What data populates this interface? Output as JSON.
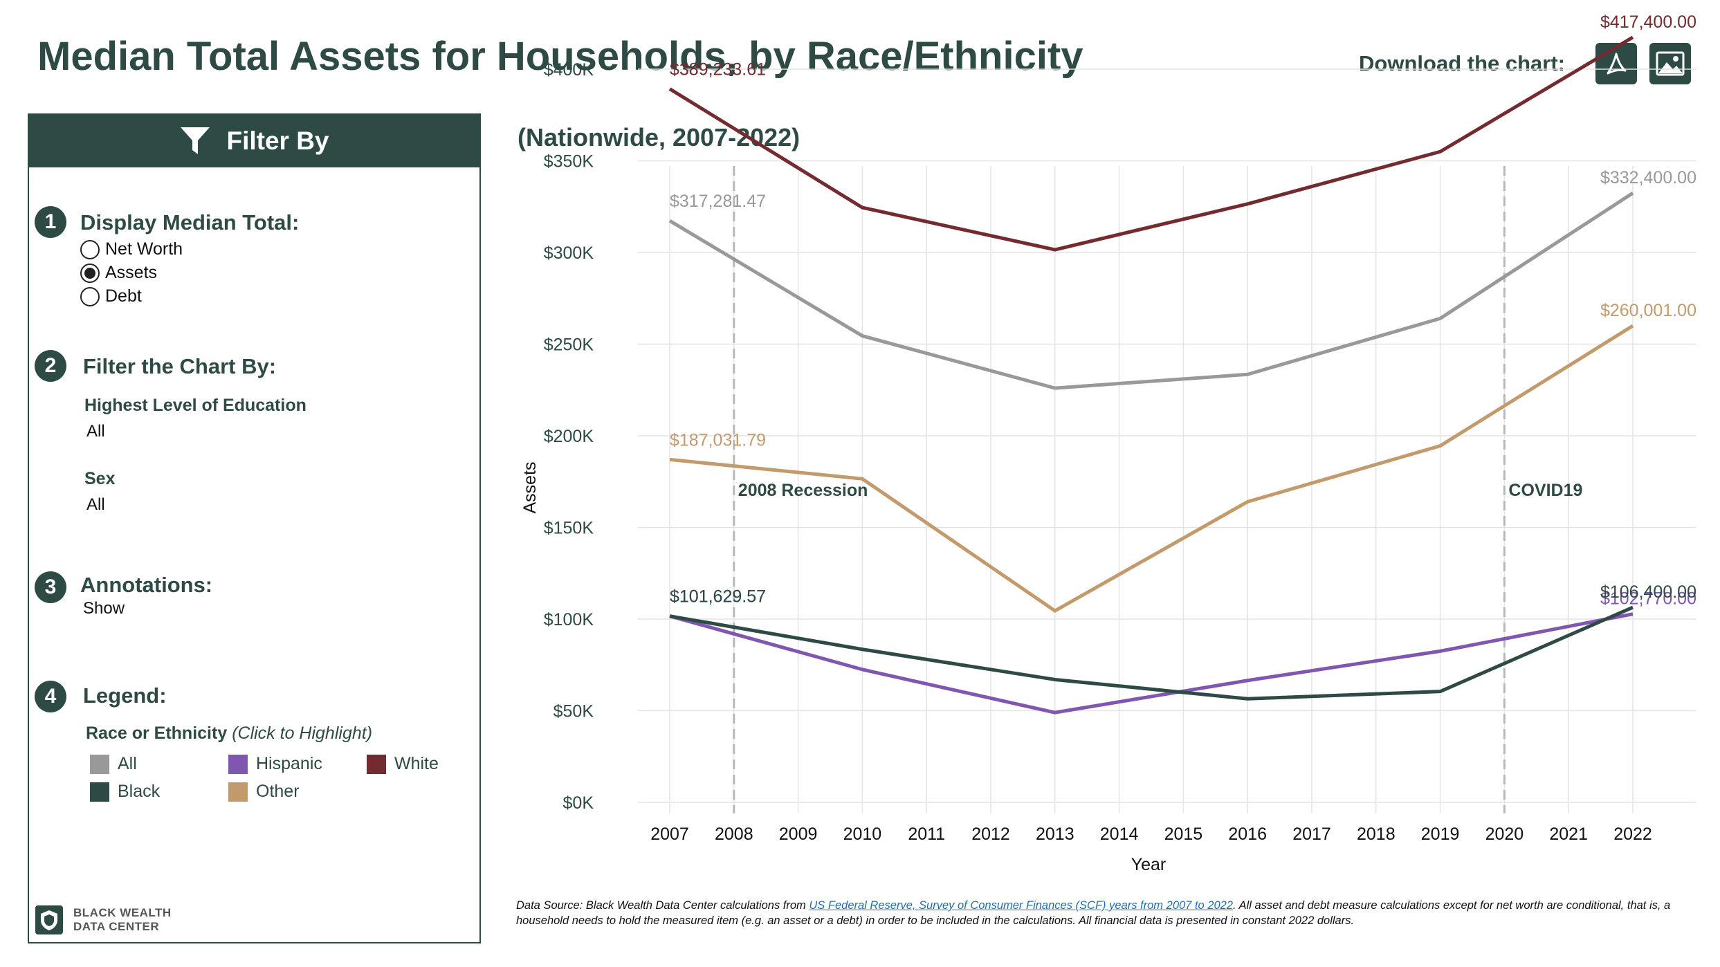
{
  "header": {
    "title": "Median Total Assets for Households, by Race/Ethnicity",
    "download_label": "Download the chart:",
    "pdf_icon": "pdf-download-icon",
    "image_icon": "image-download-icon"
  },
  "filter_panel": {
    "header_label": "Filter By",
    "header_icon": "funnel-icon",
    "sections": {
      "display": {
        "number": "1",
        "title": "Display Median Total:",
        "options": [
          "Net Worth",
          "Assets",
          "Debt"
        ],
        "selected": "Assets"
      },
      "filter": {
        "number": "2",
        "title": "Filter the Chart By:",
        "education_label": "Highest Level of Education",
        "education_value": "All",
        "sex_label": "Sex",
        "sex_value": "All"
      },
      "annotations": {
        "number": "3",
        "title": "Annotations:",
        "value": "Show"
      },
      "legend": {
        "number": "4",
        "title": "Legend:",
        "subtitle_bold": "Race or Ethnicity",
        "subtitle_italic": "(Click to Highlight)",
        "items": [
          {
            "label": "All",
            "color": "#999999"
          },
          {
            "label": "Hispanic",
            "color": "#7f56b0"
          },
          {
            "label": "White",
            "color": "#742b30"
          },
          {
            "label": "Black",
            "color": "#2e4a45"
          },
          {
            "label": "Other",
            "color": "#c39a6b"
          }
        ]
      }
    },
    "logo": {
      "line1": "BLACK WEALTH",
      "line2": "DATA CENTER"
    }
  },
  "subtitle": "(Nationwide, 2007-2022)",
  "chart_data": {
    "type": "line",
    "ylabel": "Assets",
    "xlabel": "Year",
    "x": [
      2007,
      2008,
      2009,
      2010,
      2011,
      2012,
      2013,
      2014,
      2015,
      2016,
      2017,
      2018,
      2019,
      2020,
      2021,
      2022
    ],
    "x_tick_labels": [
      "2007",
      "2008",
      "2009",
      "2010",
      "2011",
      "2012",
      "2013",
      "2014",
      "2015",
      "2016",
      "2017",
      "2018",
      "2019",
      "2020",
      "2021",
      "2022"
    ],
    "ylim": [
      0,
      425000
    ],
    "y_ticks": [
      0,
      50000,
      100000,
      150000,
      200000,
      250000,
      300000,
      350000,
      400000
    ],
    "y_tick_labels": [
      "$0K",
      "$50K",
      "$100K",
      "$150K",
      "$200K",
      "$250K",
      "$300K",
      "$350K",
      "$400K"
    ],
    "grid": true,
    "series": [
      {
        "name": "White",
        "color": "#742b30",
        "points": [
          [
            2007,
            389233.61
          ],
          [
            2010,
            324500
          ],
          [
            2013,
            301500
          ],
          [
            2016,
            326500
          ],
          [
            2019,
            355000
          ],
          [
            2022,
            417400
          ]
        ],
        "start_label": "$389,233.61",
        "end_label": "$417,400.00"
      },
      {
        "name": "All",
        "color": "#999999",
        "points": [
          [
            2007,
            317281.47
          ],
          [
            2010,
            254500
          ],
          [
            2013,
            226000
          ],
          [
            2016,
            233500
          ],
          [
            2019,
            264000
          ],
          [
            2022,
            332400
          ]
        ],
        "start_label": "$317,281.47",
        "end_label": "$332,400.00"
      },
      {
        "name": "Other",
        "color": "#c39a6b",
        "points": [
          [
            2007,
            187031.79
          ],
          [
            2010,
            176500
          ],
          [
            2013,
            104500
          ],
          [
            2016,
            164000
          ],
          [
            2019,
            194500
          ],
          [
            2022,
            260001
          ]
        ],
        "start_label": "$187,031.79",
        "end_label": "$260,001.00"
      },
      {
        "name": "Hispanic",
        "color": "#7f56b0",
        "points": [
          [
            2007,
            101629.57
          ],
          [
            2010,
            72500
          ],
          [
            2013,
            49000
          ],
          [
            2016,
            66500
          ],
          [
            2019,
            82500
          ],
          [
            2022,
            102770
          ]
        ],
        "start_label": "$101,629.57",
        "end_label": "$102,770.00"
      },
      {
        "name": "Black",
        "color": "#2e4a45",
        "points": [
          [
            2007,
            101629.57
          ],
          [
            2010,
            83500
          ],
          [
            2013,
            67000
          ],
          [
            2016,
            56500
          ],
          [
            2019,
            60500
          ],
          [
            2022,
            106400
          ]
        ],
        "start_label": "$101,629.57",
        "end_label": "$106,400.00"
      }
    ],
    "annotations": [
      {
        "x": 2008,
        "label": "2008 Recession"
      },
      {
        "x": 2020,
        "label": "COVID19"
      }
    ]
  },
  "footnote": {
    "prefix": "Data Source: Black Wealth Data Center calculations from ",
    "link": "US Federal Reserve, Survey of Consumer Finances (SCF) years from 2007 to 2022",
    "suffix": ". All asset and debt measure calculations except for net worth are conditional, that is, a household needs to hold the measured item (e.g. an asset or a debt) in order to be included in the calculations. All financial data is presented in constant 2022 dollars."
  }
}
